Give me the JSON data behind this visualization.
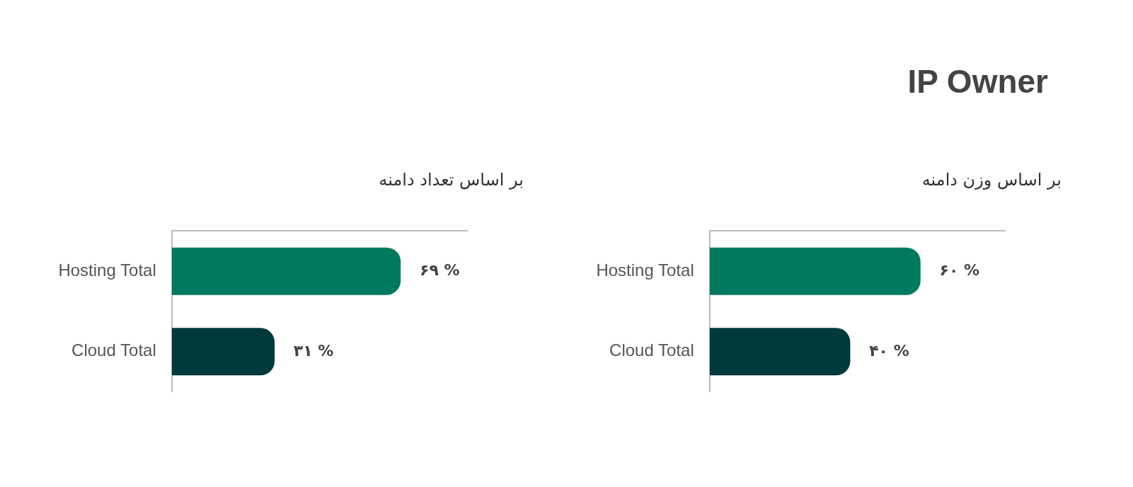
{
  "chart_data": [
    {
      "type": "bar",
      "orientation": "horizontal",
      "title": "IP Owner",
      "subtitle": "بر اساس وزن دامنه",
      "categories": [
        "Hosting Total",
        "Cloud Total"
      ],
      "values": [
        60,
        40
      ],
      "value_labels": [
        "۶۰ %",
        "۴۰ %"
      ],
      "colors": [
        "#007a5e",
        "#003a3c"
      ],
      "xlim": [
        0,
        84
      ],
      "grid": false,
      "legend": false,
      "tick_labels": "y"
    },
    {
      "type": "bar",
      "orientation": "horizontal",
      "subtitle": "بر اساس تعداد دامنه",
      "categories": [
        "Hosting Total",
        "Cloud Total"
      ],
      "values": [
        69,
        31
      ],
      "value_labels": [
        "۶۹ %",
        "۳۱ %"
      ],
      "colors": [
        "#007a5e",
        "#003a3c"
      ],
      "xlim": [
        0,
        89
      ],
      "grid": false,
      "legend": false,
      "tick_labels": "y"
    }
  ]
}
